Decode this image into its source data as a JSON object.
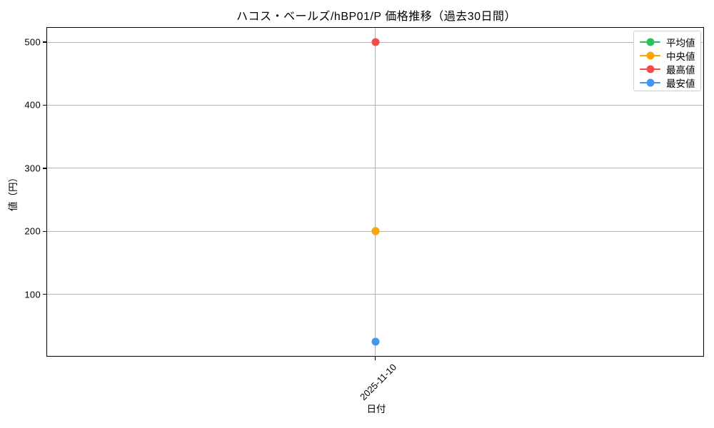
{
  "title": "ハコス・ベールズ/hBP01/P 価格推移（過去30日間）",
  "chart_data": {
    "type": "line",
    "x": [
      "2025-11-10"
    ],
    "series": [
      {
        "name": "平均値",
        "color": "#2dbe60",
        "values": [
          200
        ],
        "note": "hidden behind 中央値 marker at same value"
      },
      {
        "name": "中央値",
        "color": "#ffa502",
        "values": [
          200
        ]
      },
      {
        "name": "最高値",
        "color": "#f54b4b",
        "values": [
          500
        ]
      },
      {
        "name": "最安値",
        "color": "#4197f0",
        "values": [
          25
        ]
      }
    ],
    "title": "ハコス・ベールズ/hBP01/P 価格推移（過去30日間）",
    "xlabel": "日付",
    "ylabel": "値（円）",
    "yticks": [
      100,
      200,
      300,
      400,
      500
    ],
    "ylim": [
      1.25,
      523.75
    ],
    "grid": true,
    "grid_color": "#b2b2b2",
    "legend_position": "upper right",
    "marker": "circle"
  }
}
